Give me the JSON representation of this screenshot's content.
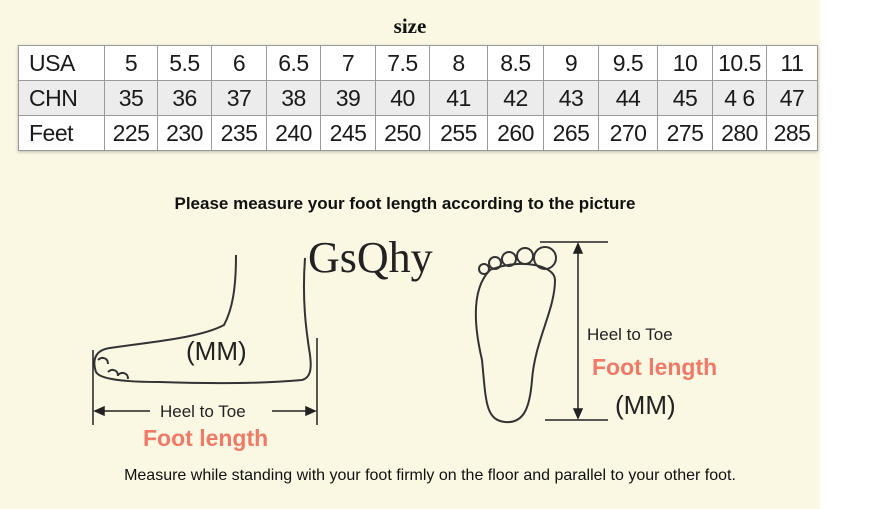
{
  "title": "size",
  "table": {
    "rows": [
      {
        "label": "USA",
        "values": [
          "5",
          "5.5",
          "6",
          "6.5",
          "7",
          "7.5",
          "8",
          "8.5",
          "9",
          "9.5",
          "10",
          "10.5",
          "11"
        ]
      },
      {
        "label": "CHN",
        "values": [
          "35",
          "36",
          "37",
          "38",
          "39",
          "40",
          "41",
          "42",
          "43",
          "44",
          "45",
          "4 6",
          "47"
        ]
      },
      {
        "label": "Feet",
        "values": [
          "225",
          "230",
          "235",
          "240",
          "245",
          "250",
          "255",
          "260",
          "265",
          "270",
          "275",
          "280",
          "285"
        ]
      }
    ]
  },
  "instruction": "Please measure your foot length according to the picture",
  "brand": "GsQhy",
  "side_view": {
    "unit": "(MM)",
    "heel_to_toe": "Heel to Toe",
    "foot_length": "Foot length"
  },
  "top_view": {
    "unit": "(MM)",
    "heel_to_toe": "Heel to Toe",
    "foot_length": "Foot length"
  },
  "note": "Measure while standing with your foot firmly on the floor and parallel to your other foot.",
  "colors": {
    "background": "#faf7e3",
    "accent": "#f07a68"
  }
}
